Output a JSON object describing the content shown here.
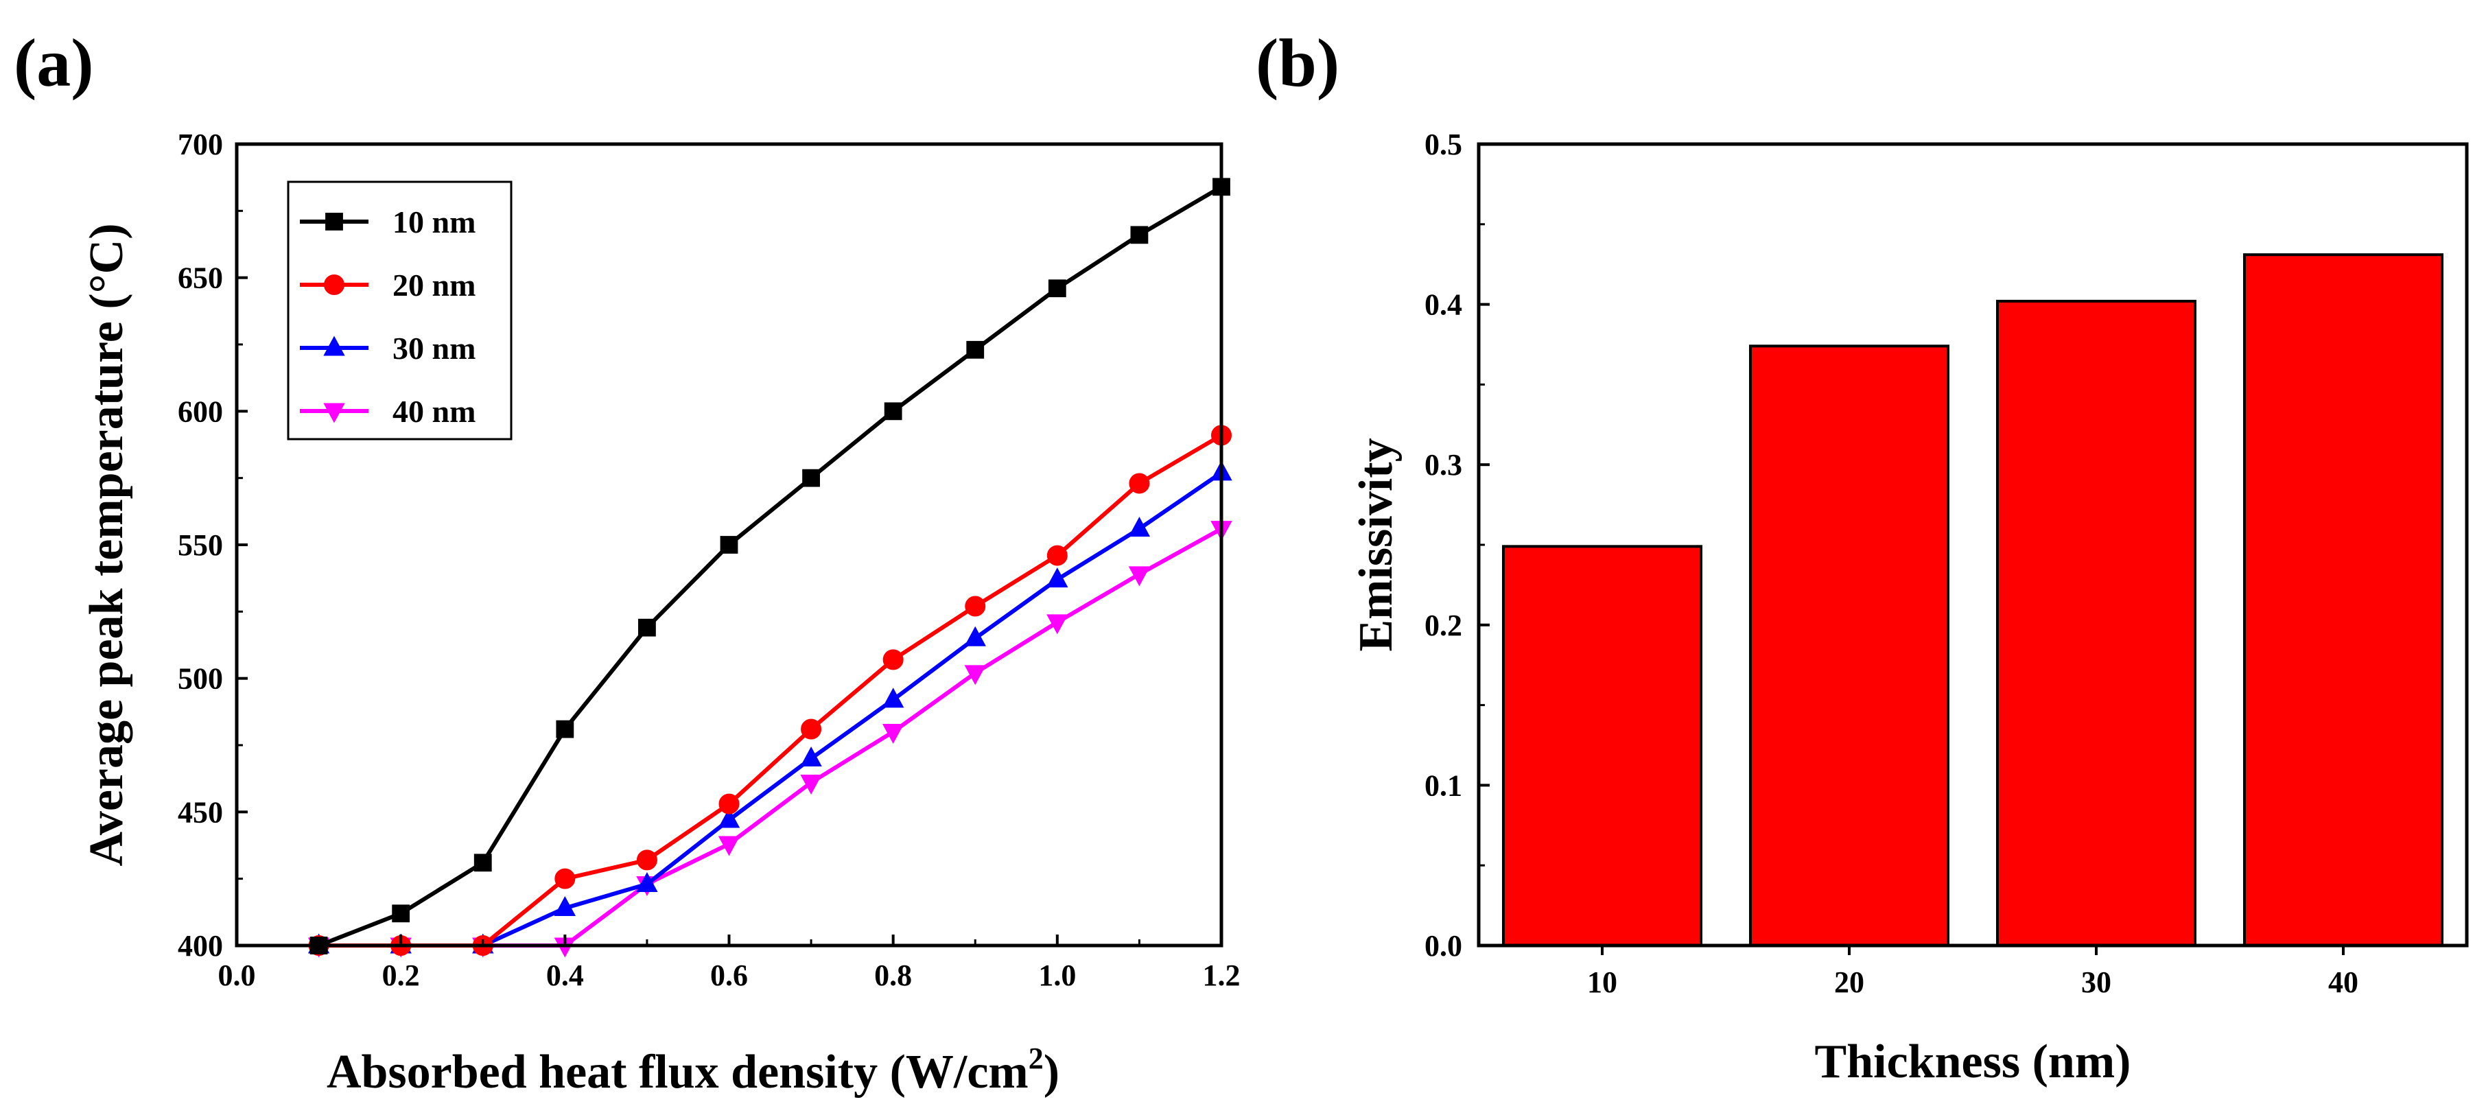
{
  "chart_data": [
    {
      "panel": "(a)",
      "type": "line",
      "xlabel": "Absorbed heat flux density (W/cm",
      "xlabel_sup": "2",
      "xlabel_end": ")",
      "ylabel": "Average peak temperature (°C)",
      "xlim": [
        0.0,
        1.2
      ],
      "ylim": [
        400,
        700
      ],
      "xticks": [
        "0.0",
        "0.2",
        "0.4",
        "0.6",
        "0.8",
        "1.0",
        "1.2"
      ],
      "yticks": [
        "400",
        "450",
        "500",
        "550",
        "600",
        "650",
        "700"
      ],
      "legend_position": "top-left",
      "series": [
        {
          "name": "10 nm",
          "color": "#000000",
          "marker": "square",
          "x": [
            0.1,
            0.2,
            0.3,
            0.4,
            0.5,
            0.6,
            0.7,
            0.8,
            0.9,
            1.0,
            1.1,
            1.2
          ],
          "y": [
            400,
            412,
            431,
            481,
            519,
            550,
            575,
            600,
            623,
            646,
            666,
            684
          ]
        },
        {
          "name": "20 nm",
          "color": "#ff0000",
          "marker": "circle",
          "x": [
            0.1,
            0.2,
            0.3,
            0.4,
            0.5,
            0.6,
            0.7,
            0.8,
            0.9,
            1.0,
            1.1,
            1.2
          ],
          "y": [
            400,
            400,
            400,
            425,
            432,
            453,
            481,
            507,
            527,
            546,
            573,
            591
          ]
        },
        {
          "name": "30 nm",
          "color": "#0000ff",
          "marker": "triangle-up",
          "x": [
            0.1,
            0.2,
            0.3,
            0.4,
            0.5,
            0.6,
            0.7,
            0.8,
            0.9,
            1.0,
            1.1,
            1.2
          ],
          "y": [
            400,
            400,
            400,
            414,
            423,
            447,
            470,
            492,
            515,
            537,
            556,
            577
          ]
        },
        {
          "name": "40 nm",
          "color": "#ff00ff",
          "marker": "triangle-down",
          "x": [
            0.1,
            0.2,
            0.3,
            0.4,
            0.5,
            0.6,
            0.7,
            0.8,
            0.9,
            1.0,
            1.1,
            1.2
          ],
          "y": [
            400,
            400,
            400,
            400,
            423,
            438,
            461,
            480,
            502,
            521,
            539,
            556
          ]
        }
      ]
    },
    {
      "panel": "(b)",
      "type": "bar",
      "xlabel": "Thickness (nm)",
      "ylabel": "Emissivity",
      "categories": [
        "10",
        "20",
        "30",
        "40"
      ],
      "values": [
        0.249,
        0.374,
        0.402,
        0.431
      ],
      "ylim": [
        0.0,
        0.5
      ],
      "yticks": [
        "0.0",
        "0.1",
        "0.2",
        "0.3",
        "0.4",
        "0.5"
      ],
      "bar_color": "#ff0000"
    }
  ]
}
